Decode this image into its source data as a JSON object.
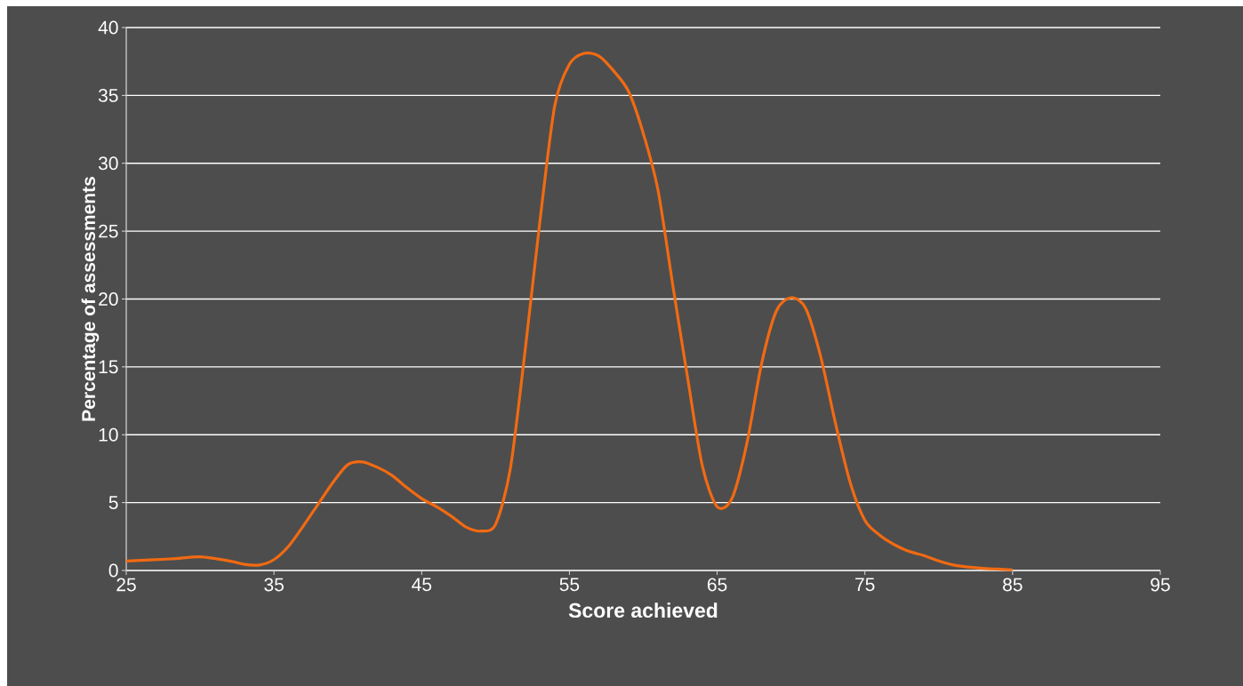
{
  "chart_data": {
    "type": "line",
    "xlabel": "Score achieved",
    "ylabel": "Percentage of assessments",
    "x": [
      25,
      28,
      30,
      32,
      33,
      34,
      35,
      36,
      37,
      38,
      39,
      40,
      41,
      42,
      43,
      44,
      45,
      46,
      47,
      48,
      49,
      50,
      51,
      52,
      53,
      54,
      55,
      56,
      57,
      58,
      59,
      60,
      61,
      62,
      63,
      64,
      65,
      66,
      67,
      68,
      69,
      70,
      71,
      72,
      73,
      74,
      75,
      76,
      77,
      78,
      79,
      80,
      81,
      82,
      83,
      84,
      85
    ],
    "series": [
      {
        "color": "#f26a12",
        "values": [
          0.7,
          0.85,
          1.0,
          0.7,
          0.45,
          0.4,
          0.8,
          1.8,
          3.3,
          4.9,
          6.5,
          7.8,
          8.0,
          7.6,
          7.0,
          6.1,
          5.3,
          4.7,
          4.0,
          3.2,
          2.9,
          3.4,
          7.5,
          16.2,
          25.7,
          34.2,
          37.3,
          38.1,
          37.9,
          36.8,
          35.3,
          32.2,
          28.0,
          21.0,
          14.2,
          7.7,
          4.7,
          5.3,
          9.3,
          15.2,
          19.1,
          20.1,
          19.3,
          15.8,
          10.9,
          6.5,
          3.7,
          2.6,
          1.9,
          1.4,
          1.1,
          0.7,
          0.4,
          0.25,
          0.15,
          0.1,
          0.05
        ]
      }
    ],
    "xlim": [
      25,
      95
    ],
    "xticks": [
      25,
      35,
      45,
      55,
      65,
      75,
      85,
      95
    ],
    "ylim": [
      0,
      40
    ],
    "yticks": [
      0,
      5,
      10,
      15,
      20,
      25,
      30,
      35,
      40
    ],
    "grid": "y",
    "marker": "none",
    "line_style": "solid"
  }
}
